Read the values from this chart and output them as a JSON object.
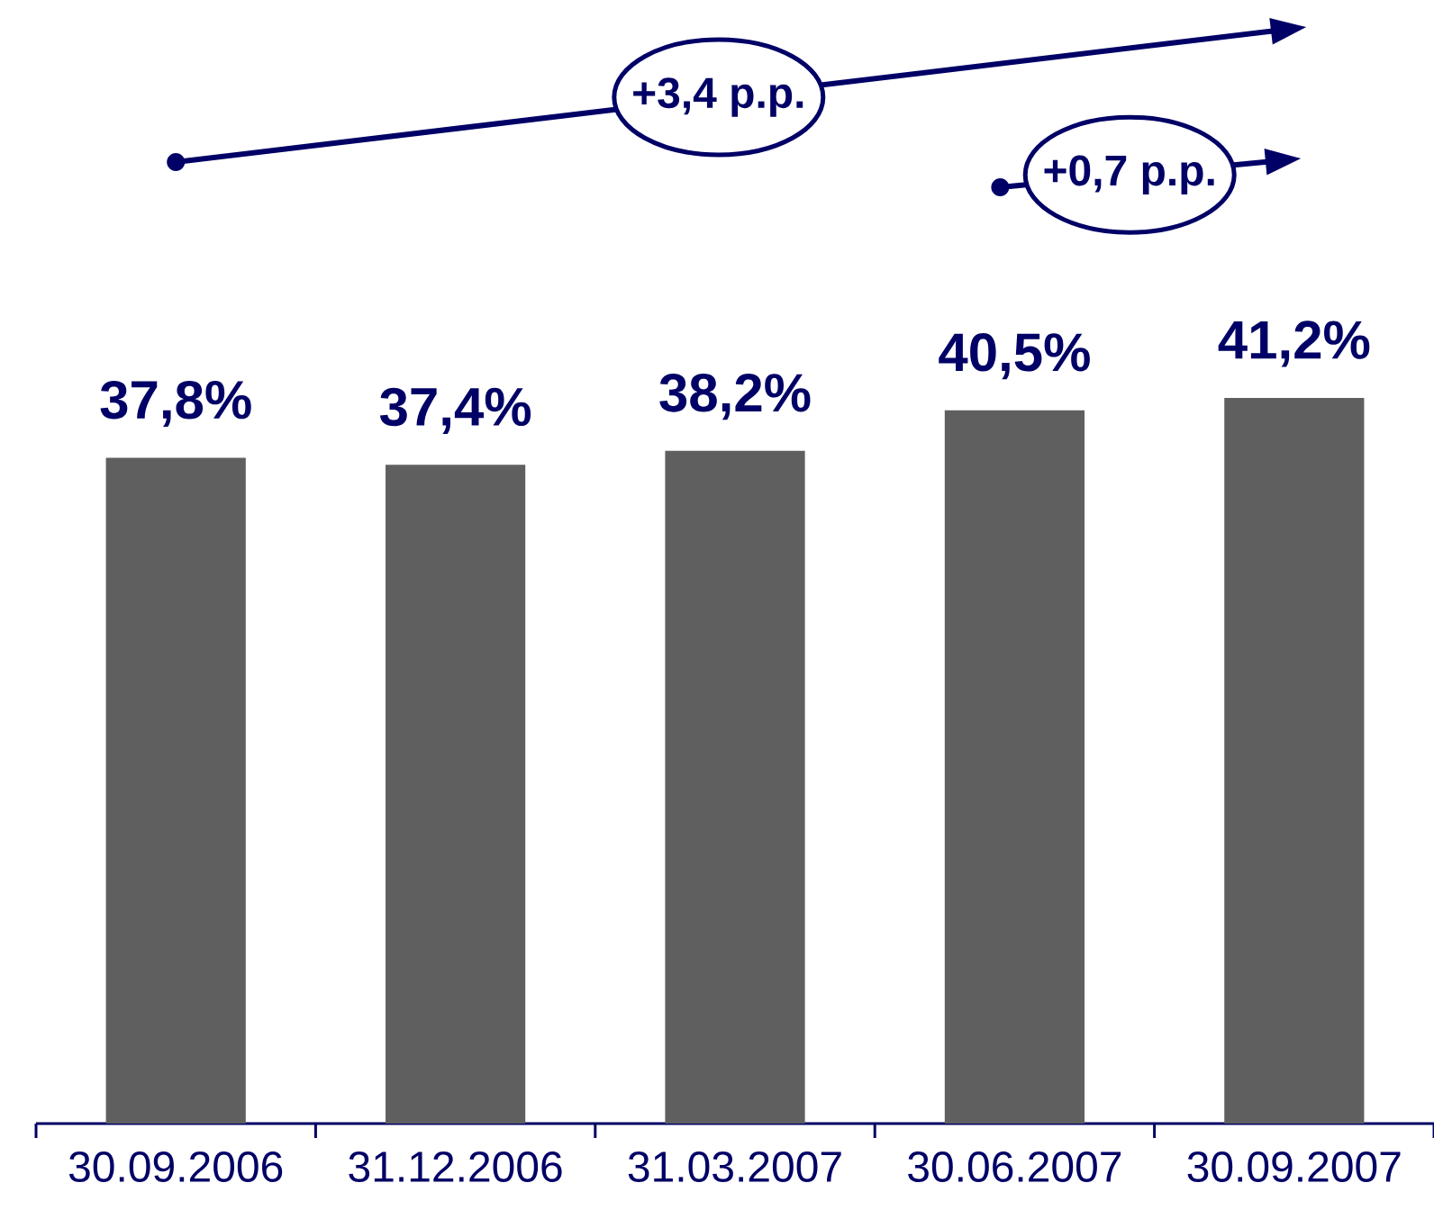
{
  "chart_data": {
    "type": "bar",
    "categories": [
      "30.09.2006",
      "31.12.2006",
      "31.03.2007",
      "30.06.2007",
      "30.09.2007"
    ],
    "values": [
      37.8,
      37.4,
      38.2,
      40.5,
      41.2
    ],
    "value_labels": [
      "37,8%",
      "37,4%",
      "38,2%",
      "40,5%",
      "41,2%"
    ],
    "color": "#5f5f5f",
    "annotations": [
      "+3,4 p.p.",
      "+0,7 p.p."
    ]
  }
}
